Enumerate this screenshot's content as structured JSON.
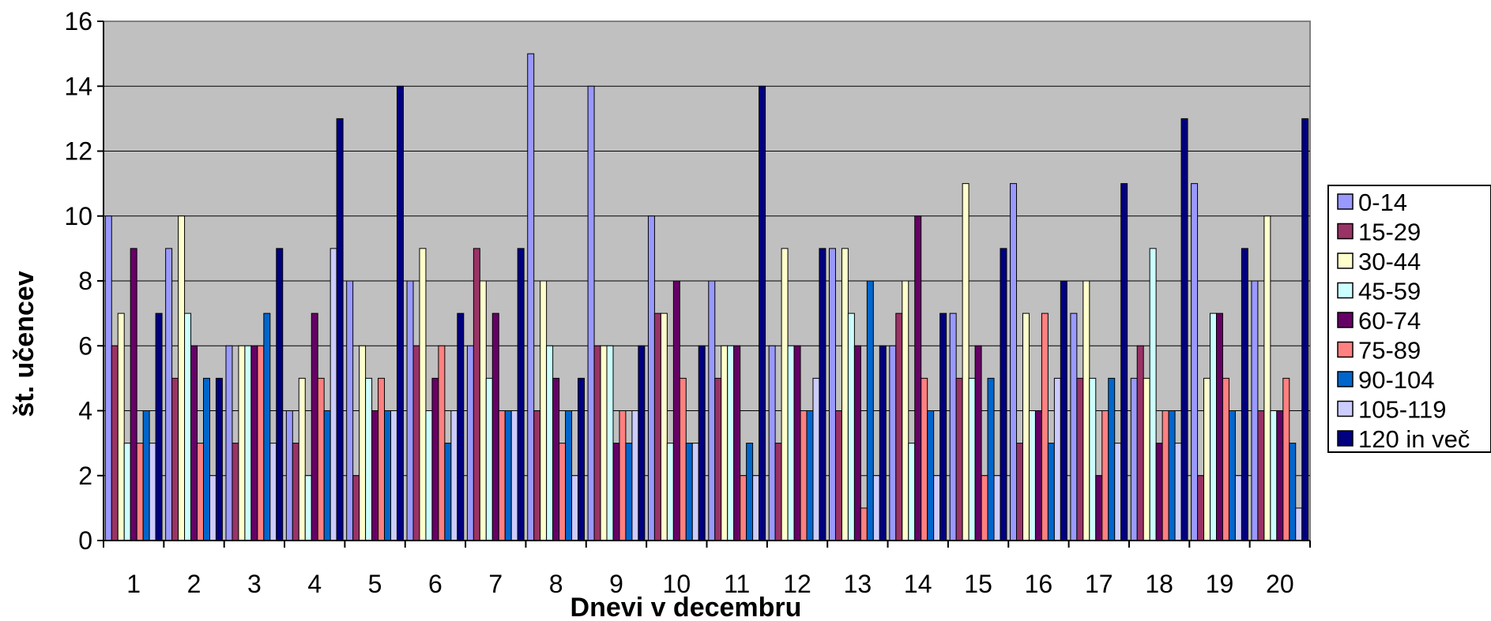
{
  "chart_data": {
    "type": "bar",
    "title": "",
    "xlabel": "Dnevi v decembru",
    "ylabel": "št. učencev",
    "ylim": [
      0,
      16
    ],
    "yticks": [
      "0",
      "2",
      "4",
      "6",
      "8",
      "10",
      "12",
      "14",
      "16"
    ],
    "grid": true,
    "legend_position": "right",
    "plot_background": "#c0c0c0",
    "categories": [
      "1",
      "2",
      "3",
      "4",
      "5",
      "6",
      "7",
      "8",
      "9",
      "10",
      "11",
      "12",
      "13",
      "14",
      "15",
      "16",
      "17",
      "18",
      "19",
      "20"
    ],
    "series": [
      {
        "name": "0-14",
        "color": "#9999ff",
        "values": [
          10,
          9,
          6,
          4,
          8,
          8,
          6,
          15,
          14,
          10,
          8,
          6,
          9,
          6,
          7,
          11,
          7,
          5,
          11,
          8
        ]
      },
      {
        "name": "15-29",
        "color": "#993366",
        "values": [
          6,
          5,
          3,
          3,
          2,
          6,
          9,
          4,
          6,
          7,
          5,
          3,
          4,
          7,
          5,
          3,
          5,
          6,
          2,
          4
        ]
      },
      {
        "name": "30-44",
        "color": "#ffffcc",
        "values": [
          7,
          10,
          6,
          5,
          6,
          9,
          8,
          8,
          6,
          7,
          6,
          9,
          9,
          8,
          11,
          7,
          8,
          5,
          5,
          10
        ]
      },
      {
        "name": "45-59",
        "color": "#ccffff",
        "values": [
          3,
          7,
          6,
          2,
          5,
          4,
          5,
          6,
          6,
          3,
          6,
          6,
          7,
          3,
          5,
          4,
          5,
          9,
          7,
          4
        ]
      },
      {
        "name": "60-74",
        "color": "#660066",
        "values": [
          9,
          6,
          6,
          7,
          4,
          5,
          7,
          5,
          3,
          8,
          6,
          6,
          6,
          10,
          6,
          4,
          2,
          3,
          7,
          4
        ]
      },
      {
        "name": "75-89",
        "color": "#ff8080",
        "values": [
          3,
          3,
          6,
          5,
          5,
          6,
          4,
          3,
          4,
          5,
          2,
          4,
          1,
          5,
          2,
          7,
          4,
          4,
          5,
          5
        ]
      },
      {
        "name": "90-104",
        "color": "#0066cc",
        "values": [
          4,
          5,
          7,
          4,
          4,
          3,
          4,
          4,
          3,
          3,
          3,
          4,
          8,
          4,
          5,
          3,
          5,
          4,
          4,
          3
        ]
      },
      {
        "name": "105-119",
        "color": "#ccccff",
        "values": [
          3,
          2,
          3,
          9,
          4,
          4,
          4,
          2,
          4,
          3,
          2,
          5,
          2,
          2,
          2,
          5,
          3,
          3,
          2,
          1
        ]
      },
      {
        "name": "120 in več",
        "color": "#000080",
        "values": [
          7,
          5,
          9,
          13,
          14,
          7,
          9,
          5,
          6,
          6,
          14,
          9,
          6,
          7,
          9,
          8,
          11,
          13,
          9,
          13
        ]
      }
    ]
  }
}
